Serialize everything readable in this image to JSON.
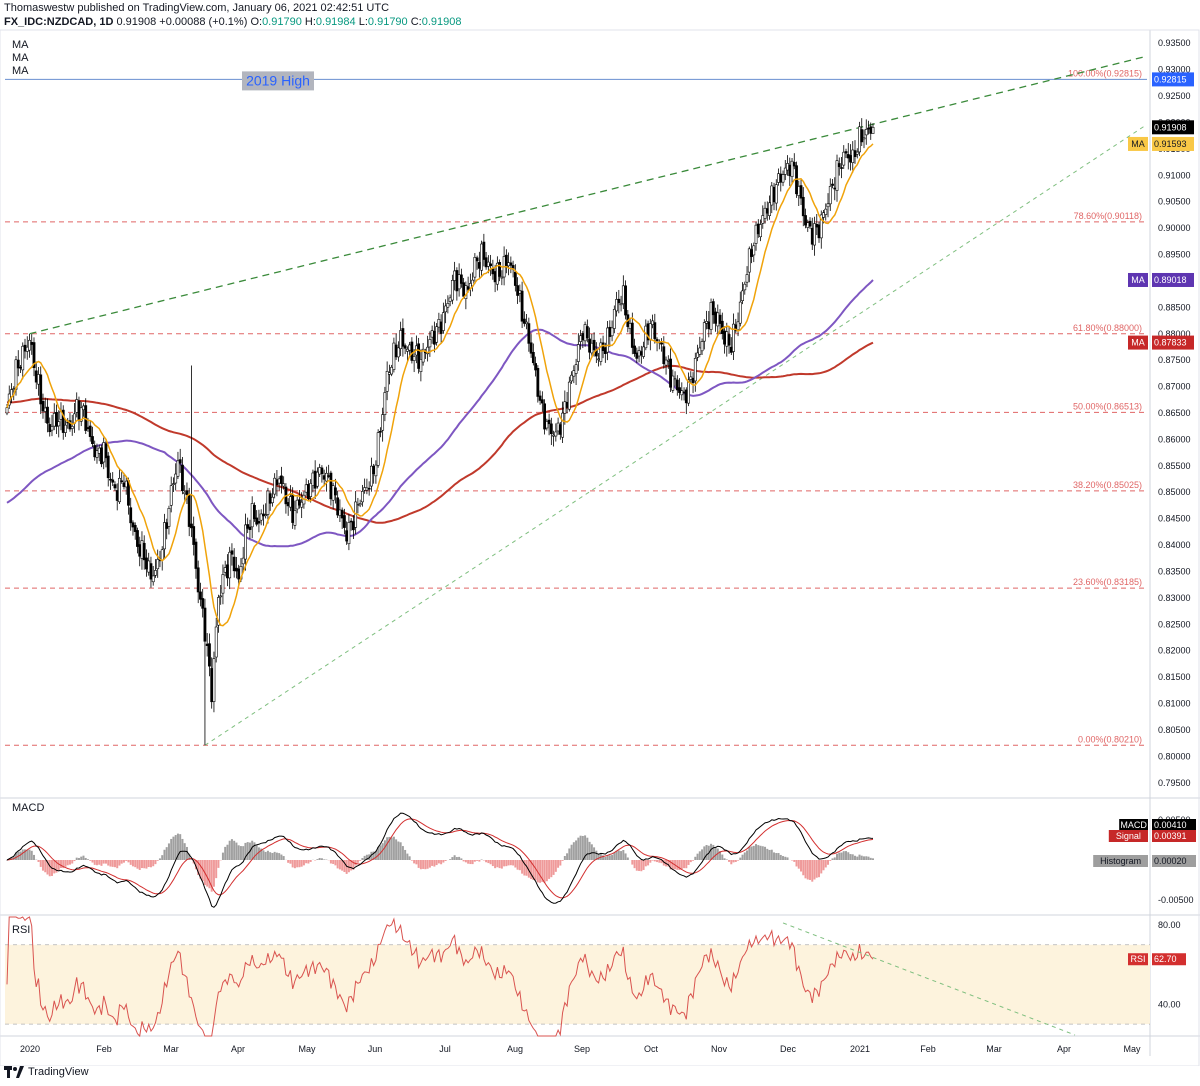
{
  "header": {
    "publisher": "Thomaswestw published on TradingView.com, January 06, 2021 02:42:51 UTC",
    "symbol": "FX_IDC:NZDCAD, 1D",
    "last": "0.91908",
    "change": "+0.00088 (+0.1%)",
    "o_label": "O:",
    "o": "0.91790",
    "h_label": "H:",
    "h": "0.91984",
    "l_label": "L:",
    "l": "0.91790",
    "c_label": "C:",
    "c": "0.91908"
  },
  "footer": {
    "brand": "TradingView"
  },
  "colors": {
    "up": "#ffffff",
    "down": "#000000",
    "ma_fast": "#f0a30a",
    "ma_mid": "#7e57c2",
    "ma_slow": "#c0392b",
    "fib": "#e06666",
    "trend": "#3a8a3a",
    "high_line": "#2962ff",
    "macd": "#000000",
    "signal": "#d32f2f",
    "hist_pos": "#a0a0a0",
    "hist_neg": "#ef9a9a",
    "rsi": "#d9534f",
    "rsi_band": "#fdf3dd"
  },
  "chart_data": [
    {
      "type": "candlestick",
      "name": "NZDCAD daily",
      "x_labels": [
        "2020",
        "Feb",
        "Mar",
        "Apr",
        "May",
        "Jun",
        "Jul",
        "Aug",
        "Sep",
        "Oct",
        "Nov",
        "Dec",
        "2021",
        "Feb",
        "Mar",
        "Apr",
        "May"
      ],
      "ylim": [
        0.7925,
        0.9375
      ],
      "y_ticks": [
        "0.93500",
        "0.93000",
        "0.92500",
        "0.92000",
        "0.91500",
        "0.91000",
        "0.90500",
        "0.90000",
        "0.89500",
        "0.89000",
        "0.88500",
        "0.88000",
        "0.87500",
        "0.87000",
        "0.86500",
        "0.86000",
        "0.85500",
        "0.85000",
        "0.84500",
        "0.84000",
        "0.83500",
        "0.83000",
        "0.82500",
        "0.82000",
        "0.81500",
        "0.81000",
        "0.80500",
        "0.80000",
        "0.79500"
      ],
      "legend": [
        "MA",
        "MA",
        "MA"
      ],
      "annotation": "2019 High",
      "fib_levels": [
        {
          "label": "100.00%(0.92815)",
          "value": 0.92815
        },
        {
          "label": "78.60%(0.90118)",
          "value": 0.90118
        },
        {
          "label": "61.80%(0.88000)",
          "value": 0.88
        },
        {
          "label": "50.00%(0.86513)",
          "value": 0.86513
        },
        {
          "label": "38.20%(0.85025)",
          "value": 0.85025
        },
        {
          "label": "23.60%(0.83185)",
          "value": 0.83185
        },
        {
          "label": "0.00%(0.80210)",
          "value": 0.8021
        }
      ],
      "price_tags": [
        {
          "label": "",
          "value": "0.92815",
          "v": 0.92815,
          "style": "high"
        },
        {
          "label": "",
          "value": "0.91908",
          "v": 0.91908,
          "style": "last"
        },
        {
          "label": "MA",
          "value": "0.91593",
          "v": 0.91593,
          "style": "ma_fast"
        },
        {
          "label": "MA",
          "value": "0.89018",
          "v": 0.89018,
          "style": "ma_mid"
        },
        {
          "label": "MA",
          "value": "0.87833",
          "v": 0.87833,
          "style": "ma_slow"
        }
      ],
      "anchors": [
        [
          0,
          0.866
        ],
        [
          4,
          0.873
        ],
        [
          7,
          0.876
        ],
        [
          10,
          0.879
        ],
        [
          13,
          0.872
        ],
        [
          16,
          0.866
        ],
        [
          19,
          0.862
        ],
        [
          22,
          0.864
        ],
        [
          25,
          0.863
        ],
        [
          28,
          0.862
        ],
        [
          31,
          0.866
        ],
        [
          34,
          0.865
        ],
        [
          37,
          0.86
        ],
        [
          40,
          0.857
        ],
        [
          43,
          0.858
        ],
        [
          46,
          0.852
        ],
        [
          49,
          0.85
        ],
        [
          52,
          0.853
        ],
        [
          55,
          0.845
        ],
        [
          58,
          0.84
        ],
        [
          61,
          0.838
        ],
        [
          64,
          0.834
        ],
        [
          67,
          0.836
        ],
        [
          70,
          0.842
        ],
        [
          73,
          0.85
        ],
        [
          76,
          0.856
        ],
        [
          79,
          0.85
        ],
        [
          82,
          0.843
        ],
        [
          85,
          0.832
        ],
        [
          88,
          0.824
        ],
        [
          91,
          0.812
        ],
        [
          94,
          0.83
        ],
        [
          97,
          0.835
        ],
        [
          100,
          0.838
        ],
        [
          103,
          0.833
        ],
        [
          106,
          0.842
        ],
        [
          109,
          0.846
        ],
        [
          112,
          0.844
        ],
        [
          115,
          0.847
        ],
        [
          118,
          0.85
        ],
        [
          121,
          0.853
        ],
        [
          124,
          0.849
        ],
        [
          127,
          0.846
        ],
        [
          130,
          0.848
        ],
        [
          133,
          0.85
        ],
        [
          136,
          0.852
        ],
        [
          139,
          0.854
        ],
        [
          142,
          0.853
        ],
        [
          145,
          0.85
        ],
        [
          148,
          0.846
        ],
        [
          151,
          0.842
        ],
        [
          154,
          0.845
        ],
        [
          157,
          0.849
        ],
        [
          160,
          0.851
        ],
        [
          163,
          0.854
        ],
        [
          166,
          0.862
        ],
        [
          169,
          0.872
        ],
        [
          172,
          0.876
        ],
        [
          175,
          0.879
        ],
        [
          178,
          0.877
        ],
        [
          181,
          0.876
        ],
        [
          184,
          0.875
        ],
        [
          187,
          0.878
        ],
        [
          190,
          0.88
        ],
        [
          193,
          0.882
        ],
        [
          196,
          0.886
        ],
        [
          199,
          0.891
        ],
        [
          202,
          0.889
        ],
        [
          205,
          0.888
        ],
        [
          208,
          0.893
        ],
        [
          211,
          0.895
        ],
        [
          214,
          0.893
        ],
        [
          217,
          0.891
        ],
        [
          220,
          0.892
        ],
        [
          223,
          0.894
        ],
        [
          226,
          0.89
        ],
        [
          229,
          0.884
        ],
        [
          232,
          0.879
        ],
        [
          235,
          0.872
        ],
        [
          238,
          0.865
        ],
        [
          241,
          0.862
        ],
        [
          244,
          0.861
        ],
        [
          247,
          0.864
        ],
        [
          250,
          0.87
        ],
        [
          253,
          0.875
        ],
        [
          256,
          0.881
        ],
        [
          259,
          0.878
        ],
        [
          262,
          0.876
        ],
        [
          265,
          0.877
        ],
        [
          268,
          0.88
        ],
        [
          271,
          0.886
        ],
        [
          274,
          0.887
        ],
        [
          277,
          0.88
        ],
        [
          280,
          0.875
        ],
        [
          283,
          0.878
        ],
        [
          286,
          0.882
        ],
        [
          289,
          0.879
        ],
        [
          292,
          0.876
        ],
        [
          295,
          0.872
        ],
        [
          298,
          0.87
        ],
        [
          301,
          0.868
        ],
        [
          304,
          0.871
        ],
        [
          307,
          0.876
        ],
        [
          310,
          0.881
        ],
        [
          313,
          0.884
        ],
        [
          316,
          0.883
        ],
        [
          319,
          0.879
        ],
        [
          322,
          0.878
        ],
        [
          325,
          0.883
        ],
        [
          328,
          0.89
        ],
        [
          331,
          0.896
        ],
        [
          334,
          0.9
        ],
        [
          337,
          0.903
        ],
        [
          340,
          0.906
        ],
        [
          343,
          0.909
        ],
        [
          346,
          0.911
        ],
        [
          349,
          0.912
        ],
        [
          352,
          0.907
        ],
        [
          355,
          0.901
        ],
        [
          358,
          0.899
        ],
        [
          361,
          0.9
        ],
        [
          364,
          0.904
        ],
        [
          367,
          0.908
        ],
        [
          370,
          0.912
        ],
        [
          373,
          0.914
        ],
        [
          376,
          0.913
        ],
        [
          379,
          0.917
        ],
        [
          382,
          0.918
        ],
        [
          385,
          0.919
        ]
      ],
      "ma_fast_last": 0.91593,
      "ma_mid_last": 0.89018,
      "ma_slow_last": 0.87833
    },
    {
      "type": "line",
      "name": "MACD",
      "title": "MACD",
      "series": [
        {
          "name": "MACD",
          "value": "0.00410"
        },
        {
          "name": "Signal",
          "value": "0.00391"
        },
        {
          "name": "Histogram",
          "value": "0.00020"
        }
      ],
      "y_ticks": [
        "0.00500",
        "0.00000",
        "-0.00500"
      ],
      "ylim": [
        -0.0065,
        0.0075
      ]
    },
    {
      "type": "line",
      "name": "RSI",
      "title": "RSI",
      "series": [
        {
          "name": "RSI",
          "value": "62.70"
        }
      ],
      "y_ticks": [
        "80.00",
        "40.00"
      ],
      "ylim": [
        24,
        84
      ],
      "bands": [
        70,
        30
      ]
    }
  ]
}
